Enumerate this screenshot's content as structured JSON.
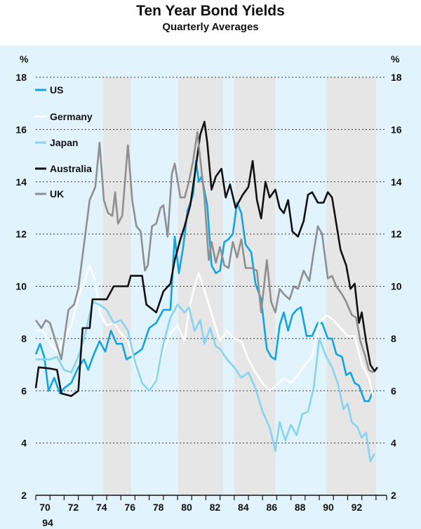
{
  "chart_data": {
    "type": "line",
    "title": "Ten Year Bond Yields",
    "subtitle": "Quarterly Averages",
    "ylabel_left": "%",
    "ylabel_right": "%",
    "ylim": [
      2,
      18
    ],
    "yticks": [
      2,
      4,
      6,
      8,
      10,
      12,
      14,
      16,
      18
    ],
    "xlim": [
      1970,
      1994.75
    ],
    "xticks": [
      "70",
      "72",
      "74",
      "76",
      "78",
      "80",
      "82",
      "84",
      "86",
      "88",
      "90",
      "92"
    ],
    "extra_xlabel": "94",
    "grid": "horizontal dashed",
    "legend_position": "top-left",
    "shaded_periods": [
      [
        1974.75,
        1976.7
      ],
      [
        1980.05,
        1983.2
      ],
      [
        1984.0,
        1986.9
      ],
      [
        1990.5,
        1994.0
      ]
    ],
    "series": [
      {
        "name": "US",
        "color": "#10a4e0",
        "x": [
          1970,
          1970.3,
          1970.6,
          1970.9,
          1971.3,
          1971.7,
          1972,
          1972.5,
          1973,
          1973.4,
          1973.7,
          1974.1,
          1974.5,
          1974.9,
          1975.3,
          1975.7,
          1976.1,
          1976.4,
          1977,
          1977.5,
          1978,
          1978.5,
          1979,
          1979.5,
          1979.8,
          1980.1,
          1980.4,
          1980.7,
          1981.1,
          1981.3,
          1981.5,
          1981.7,
          1982.1,
          1982.4,
          1982.7,
          1983,
          1983.3,
          1983.6,
          1983.9,
          1984.2,
          1984.5,
          1984.8,
          1985.2,
          1985.5,
          1985.9,
          1986.3,
          1986.6,
          1986.9,
          1987.2,
          1987.5,
          1987.8,
          1988.1,
          1988.4,
          1988.7,
          1989.1,
          1989.5,
          1989.9,
          1990.2,
          1990.6,
          1990.9,
          1991.2,
          1991.6,
          1991.9,
          1992.2,
          1992.5,
          1992.8,
          1993.2,
          1993.5,
          1993.8
        ],
        "y": [
          7.4,
          7.8,
          7.3,
          6.0,
          6.5,
          5.9,
          6.1,
          6.3,
          6.9,
          7.2,
          6.8,
          7.4,
          7.9,
          7.5,
          8.3,
          7.8,
          7.8,
          7.2,
          7.4,
          7.6,
          8.4,
          8.6,
          9.1,
          9.1,
          11.9,
          10.5,
          11.5,
          12.9,
          13.5,
          14.8,
          14.0,
          14.2,
          13.1,
          10.8,
          10.5,
          10.6,
          11.7,
          11.8,
          12.0,
          13.2,
          12.8,
          11.6,
          11.3,
          10.1,
          9.5,
          7.6,
          7.3,
          7.2,
          8.5,
          9.0,
          8.3,
          8.9,
          9.1,
          9.2,
          8.1,
          8.1,
          8.6,
          8.6,
          8.0,
          8.0,
          7.4,
          7.3,
          6.6,
          6.7,
          6.3,
          6.2,
          5.6,
          5.6,
          6.0
        ]
      },
      {
        "name": "Germany",
        "color": "#ffffff",
        "x": [
          1970,
          1970.5,
          1971,
          1971.5,
          1972,
          1972.5,
          1973,
          1973.5,
          1973.8,
          1974.2,
          1974.5,
          1975,
          1975.5,
          1976,
          1976.5,
          1977,
          1977.5,
          1978,
          1978.5,
          1979,
          1979.5,
          1980,
          1980.5,
          1980.8,
          1981.2,
          1981.5,
          1981.8,
          1982.2,
          1982.6,
          1983,
          1983.5,
          1984,
          1984.5,
          1985,
          1985.5,
          1986,
          1986.5,
          1987,
          1987.5,
          1988,
          1988.5,
          1989,
          1989.5,
          1990,
          1990.5,
          1991,
          1991.5,
          1992,
          1992.5,
          1993,
          1993.5,
          1993.8
        ],
        "y": [
          8.3,
          8.3,
          7.8,
          7.5,
          8.0,
          8.5,
          9.6,
          10.3,
          10.8,
          10.2,
          9.0,
          8.5,
          8.6,
          8.2,
          7.9,
          7.0,
          6.3,
          6.0,
          6.6,
          7.5,
          8.2,
          8.5,
          7.9,
          9.1,
          10.0,
          10.5,
          10.0,
          9.3,
          8.6,
          7.9,
          8.3,
          8.0,
          7.9,
          7.2,
          6.7,
          6.3,
          6.0,
          6.2,
          6.5,
          6.3,
          6.6,
          7.0,
          7.3,
          8.6,
          8.9,
          8.7,
          8.4,
          8.1,
          8.1,
          7.0,
          6.5,
          5.8
        ]
      },
      {
        "name": "Japan",
        "color": "#86d3f2",
        "x": [
          1970,
          1971,
          1971.5,
          1972,
          1972.5,
          1973,
          1973.5,
          1974,
          1974.5,
          1975,
          1975.5,
          1976,
          1976.5,
          1977,
          1977.5,
          1978,
          1978.5,
          1979,
          1979.5,
          1980,
          1980.5,
          1980.8,
          1981.2,
          1981.6,
          1981.9,
          1982.3,
          1982.7,
          1983,
          1983.5,
          1984,
          1984.5,
          1985,
          1985.5,
          1986,
          1986.5,
          1986.9,
          1987.2,
          1987.6,
          1988,
          1988.4,
          1988.8,
          1989.2,
          1989.6,
          1990,
          1990.5,
          1990.9,
          1991.3,
          1991.7,
          1992,
          1992.3,
          1992.7,
          1993,
          1993.3,
          1993.6,
          1993.9
        ],
        "y": [
          7.2,
          7.2,
          7.3,
          6.8,
          6.7,
          7.3,
          8.2,
          9.4,
          9.3,
          9.1,
          8.6,
          8.7,
          8.3,
          7.1,
          6.3,
          6.0,
          6.4,
          7.8,
          8.8,
          9.3,
          9.0,
          9.2,
          8.3,
          8.7,
          7.8,
          8.4,
          7.7,
          7.6,
          7.2,
          6.9,
          6.5,
          6.7,
          6.1,
          5.2,
          4.6,
          3.7,
          4.8,
          4.1,
          4.7,
          4.3,
          5.1,
          5.2,
          6.1,
          8.0,
          7.3,
          6.9,
          6.3,
          5.3,
          5.5,
          4.8,
          4.6,
          4.2,
          4.4,
          3.3,
          3.6
        ]
      },
      {
        "name": "Australia",
        "color": "#111111",
        "x": [
          1970,
          1970.2,
          1971,
          1971.5,
          1971.8,
          1972.5,
          1973,
          1973.3,
          1973.8,
          1974,
          1975,
          1975.5,
          1976.5,
          1976.7,
          1977.5,
          1977.8,
          1978.5,
          1979,
          1979.5,
          1979.8,
          1980.2,
          1980.5,
          1980.9,
          1981.3,
          1981.6,
          1981.9,
          1982.1,
          1982.4,
          1982.7,
          1983.1,
          1983.4,
          1983.7,
          1984.1,
          1984.6,
          1985,
          1985.3,
          1985.6,
          1985.9,
          1986.2,
          1986.5,
          1986.9,
          1987.2,
          1987.5,
          1987.8,
          1988.1,
          1988.5,
          1988.9,
          1989.2,
          1989.5,
          1989.9,
          1990.3,
          1990.6,
          1990.9,
          1991.2,
          1991.5,
          1991.9,
          1992.2,
          1992.5,
          1992.8,
          1993,
          1993.3,
          1993.6,
          1993.9,
          1994.1
        ],
        "y": [
          6.1,
          6.9,
          6.85,
          6.8,
          5.9,
          5.8,
          6.0,
          8.4,
          8.4,
          9.5,
          9.5,
          10.0,
          10.0,
          10.4,
          10.4,
          9.3,
          9.0,
          9.8,
          10.1,
          11.0,
          11.8,
          12.3,
          13.1,
          14.6,
          15.8,
          16.3,
          15.5,
          13.7,
          14.2,
          14.5,
          13.4,
          13.9,
          13.0,
          13.5,
          13.8,
          14.8,
          13.3,
          12.6,
          14.0,
          13.4,
          13.7,
          13.0,
          12.8,
          13.3,
          12.1,
          11.9,
          12.5,
          13.5,
          13.6,
          13.2,
          13.2,
          13.6,
          13.4,
          12.4,
          11.4,
          10.8,
          9.9,
          10.1,
          8.6,
          9.0,
          7.9,
          7.0,
          6.75,
          6.9
        ]
      },
      {
        "name": "UK",
        "color": "#8f8f8f",
        "x": [
          1970,
          1970.4,
          1970.7,
          1971,
          1971.4,
          1971.8,
          1972.3,
          1972.7,
          1973,
          1973.4,
          1973.8,
          1974.2,
          1974.5,
          1974.8,
          1975.1,
          1975.4,
          1975.6,
          1975.8,
          1976.1,
          1976.5,
          1976.8,
          1977.1,
          1977.4,
          1977.7,
          1977.9,
          1978.2,
          1978.5,
          1978.8,
          1979,
          1979.3,
          1979.6,
          1979.8,
          1980.2,
          1980.5,
          1980.8,
          1981.1,
          1981.4,
          1981.6,
          1981.9,
          1982.2,
          1982.4,
          1982.7,
          1983,
          1983.3,
          1983.6,
          1983.9,
          1984.2,
          1984.5,
          1984.8,
          1985.2,
          1985.6,
          1985.9,
          1986.3,
          1986.6,
          1986.9,
          1987.2,
          1987.5,
          1987.9,
          1988.2,
          1988.5,
          1988.9,
          1989.3,
          1989.6,
          1989.9,
          1990.2,
          1990.6,
          1990.9,
          1991.2,
          1991.6,
          1991.9,
          1992.3,
          1992.6,
          1992.9,
          1993.2,
          1993.5,
          1993.8
        ],
        "y": [
          8.7,
          8.4,
          8.7,
          8.6,
          7.9,
          7.2,
          9.1,
          9.3,
          9.9,
          11.6,
          13.3,
          13.8,
          15.5,
          13.3,
          12.8,
          12.7,
          13.6,
          12.4,
          12.7,
          15.4,
          13.3,
          12.3,
          12.1,
          10.6,
          10.8,
          12.3,
          12.4,
          13.0,
          13.1,
          11.9,
          14.3,
          14.7,
          13.4,
          13.4,
          14.0,
          14.8,
          15.9,
          14.9,
          13.4,
          11.0,
          11.7,
          10.9,
          11.5,
          10.8,
          10.7,
          11.7,
          11.1,
          11.8,
          10.7,
          10.7,
          10.6,
          9.0,
          11.0,
          9.4,
          9.0,
          9.9,
          9.7,
          9.5,
          10.0,
          9.9,
          10.6,
          10.2,
          11.3,
          12.3,
          12.0,
          10.3,
          10.4,
          10.0,
          9.7,
          9.4,
          8.9,
          8.8,
          7.9,
          7.4,
          6.8,
          6.7
        ]
      }
    ]
  }
}
